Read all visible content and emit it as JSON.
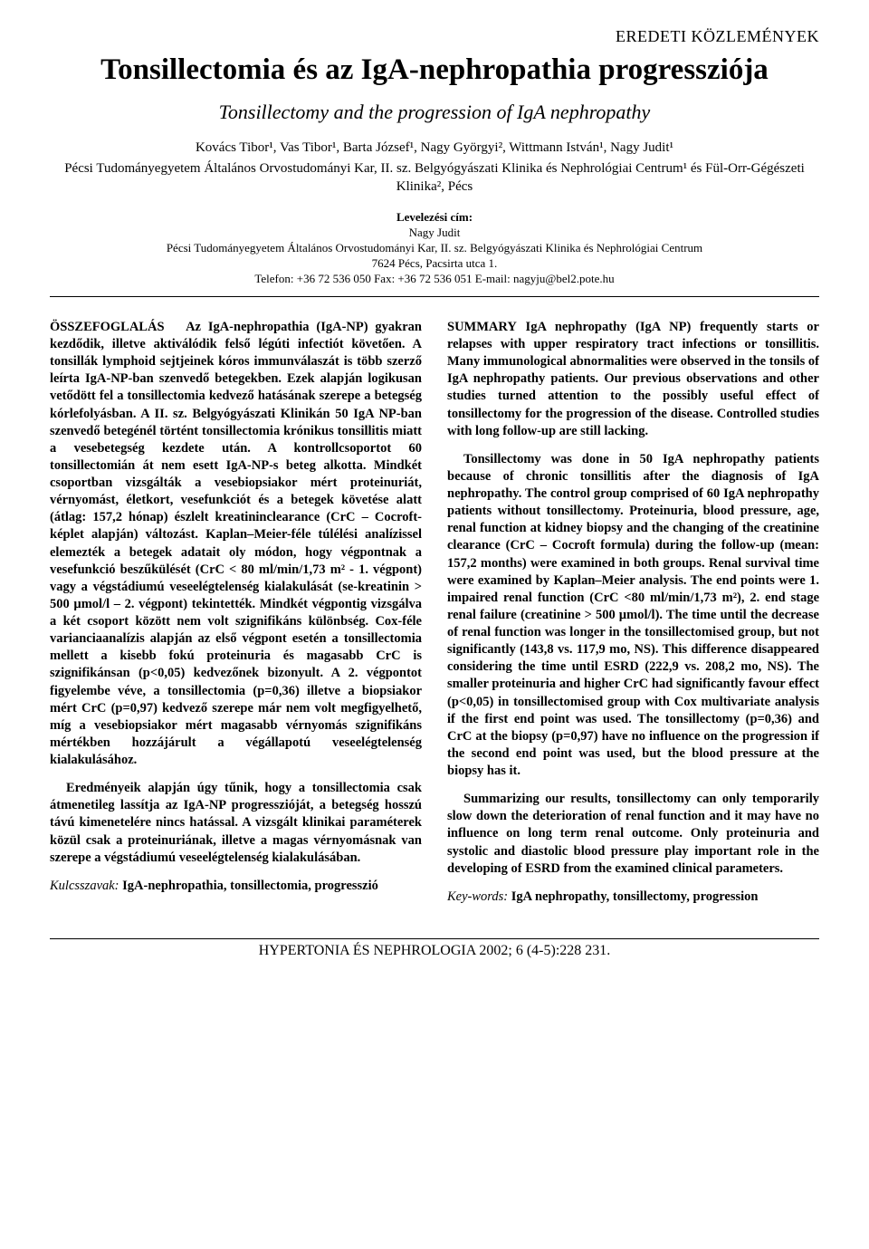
{
  "header": {
    "section_label": "EREDETI KÖZLEMÉNYEK"
  },
  "title": {
    "main": "Tonsillectomia és az IgA-nephropathia progressziója",
    "subtitle": "Tonsillectomy and the progression of IgA nephropathy"
  },
  "authors_line": "Kovács Tibor¹, Vas Tibor¹, Barta József¹, Nagy Györgyi², Wittmann István¹, Nagy Judit¹",
  "affiliation": "Pécsi Tudományegyetem Általános Orvostudományi Kar, II. sz. Belgyógyászati Klinika és Nephrológiai Centrum¹ és Fül-Orr-Gégészeti Klinika², Pécs",
  "correspondence": {
    "label": "Levelezési cím:",
    "name": "Nagy Judit",
    "addr1": "Pécsi Tudományegyetem Általános Orvostudományi Kar, II. sz. Belgyógyászati Klinika és Nephrológiai Centrum",
    "addr2": "7624 Pécs, Pacsirta utca 1.",
    "contact": "Telefon: +36 72 536 050 Fax: +36 72 536 051 E-mail: nagyju@bel2.pote.hu"
  },
  "left": {
    "heading": "ÖSSZEFOGLALÁS",
    "p1": "Az IgA-nephropathia (IgA-NP) gyakran kezdődik, illetve aktiválódik felső légúti infectiót követően. A tonsillák lymphoid sejtjeinek kóros immunválaszát is több szerző leírta IgA-NP-ban szenvedő betegekben. Ezek alapján logikusan vetődött fel a tonsillectomia kedvező hatásának szerepe a betegség kórlefolyásban. A II. sz. Belgyógyászati Klinikán 50 IgA NP-ban szenvedő betegénél történt tonsillectomia krónikus tonsillitis miatt a vesebetegség kezdete után. A kontrollcsoportot 60 tonsillectomián át nem esett IgA-NP-s beteg alkotta. Mindkét csoportban vizsgálták a vesebiopsiakor mért proteinuriát, vérnyomást, életkort, vesefunkciót és a betegek követése alatt (átlag: 157,2 hónap) észlelt kreatininclearance (CrC – Cocroft-képlet alapján) változást. Kaplan–Meier-féle túlélési analízissel elemezték a betegek adatait oly módon, hogy végpontnak a vesefunkció beszűkülését (CrC < 80 ml/min/1,73 m² - 1. végpont) vagy a végstádiumú veseelégtelenség kialakulását (se-kreatinin > 500 µmol/l – 2. végpont) tekintették. Mindkét végpontig vizsgálva a két csoport között nem volt szignifikáns különbség. Cox-féle varianciaanalízis alapján az első végpont esetén a tonsillectomia mellett a kisebb fokú proteinuria és magasabb CrC is szignifikánsan (p<0,05) kedvezőnek bizonyult. A 2. végpontot figyelembe véve, a tonsillectomia (p=0,36) illetve a biopsiakor mért CrC (p=0,97) kedvező szerepe már nem volt megfigyelhető, míg a vesebiopsiakor mért magasabb vérnyomás szignifikáns mértékben hozzájárult a végállapotú veseelégtelenség kialakulásához.",
    "p2": "Eredményeik alapján úgy tűnik, hogy a tonsillectomia csak átmenetileg lassítja az IgA-NP progresszióját, a betegség hosszú távú kimenetelére nincs hatással. A vizsgált klinikai paraméterek közül csak a proteinuriának, illetve a magas vérnyomásnak van szerepe a végstádiumú veseelégtelenség kialakulásában.",
    "kw_label": "Kulcsszavak:",
    "kw": "IgA-nephropathia, tonsillectomia, progresszió"
  },
  "right": {
    "heading": "SUMMARY",
    "p1": "IgA nephropathy (IgA NP) frequently starts or relapses with upper respiratory tract infections or tonsillitis. Many immunological abnormalities were observed in the tonsils of IgA nephropathy patients. Our previous observations and other studies turned attention to the possibly useful effect of tonsillectomy for the progression of the disease. Controlled studies with long follow-up are still lacking.",
    "p2": "Tonsillectomy was done in 50 IgA nephropathy patients because of chronic tonsillitis after the diagnosis of IgA nephropathy. The control group comprised of 60 IgA nephropathy patients without tonsillectomy. Proteinuria, blood pressure, age, renal function at kidney biopsy and the changing of the creatinine clearance (CrC – Cocroft formula) during the follow-up (mean: 157,2 months) were examined in both groups. Renal survival time were examined by Kaplan–Meier analysis. The end points were 1. impaired renal function (CrC <80 ml/min/1,73 m²), 2. end stage renal failure (creatinine > 500 µmol/l). The time until the decrease of renal function was longer in the tonsillectomised group, but not significantly (143,8 vs. 117,9 mo, NS). This difference disappeared considering the time until ESRD (222,9 vs. 208,2 mo, NS). The smaller proteinuria and higher CrC had significantly favour effect (p<0,05) in tonsillectomised group with Cox multivariate analysis if the first end point was used. The tonsillectomy (p=0,36) and CrC at the biopsy (p=0,97) have no influence on the progression if the second end point was used, but the blood pressure at the biopsy has it.",
    "p3": "Summarizing our results, tonsillectomy can only temporarily slow down the deterioration of renal function and it may have no influence on long term renal outcome. Only proteinuria and systolic and diastolic blood pressure play important role in the developing of ESRD from the examined clinical parameters.",
    "kw_label": "Key-words:",
    "kw": "IgA nephropathy, tonsillectomy, progression"
  },
  "footer": "HYPERTONIA ÉS NEPHROLOGIA 2002; 6 (4-5):228 231."
}
